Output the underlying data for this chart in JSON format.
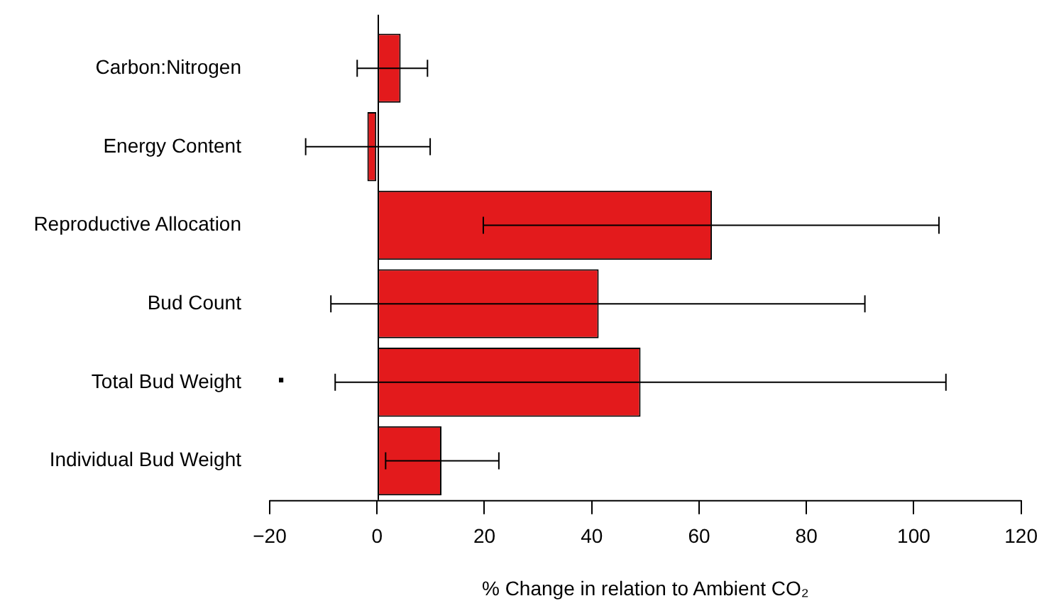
{
  "chart_data": {
    "type": "bar",
    "orientation": "horizontal",
    "xlabel": "% Change in relation to Ambient CO₂",
    "categories": [
      "Carbon:Nitrogen",
      "Energy Content",
      "Reproductive Allocation",
      "Bud Count",
      "Total Bud Weight",
      "Individual Bud Weight"
    ],
    "values": [
      4.4,
      -1.8,
      62.4,
      41.3,
      49.1,
      12.0
    ],
    "errors": [
      [
        -3.7,
        9.4
      ],
      [
        -13.3,
        9.9
      ],
      [
        19.8,
        104.7
      ],
      [
        -8.6,
        90.9
      ],
      [
        -7.8,
        106
      ],
      [
        1.6,
        22.7
      ]
    ],
    "color": "#e31a1c",
    "xlim": [
      -20,
      120
    ],
    "xticks": [
      -20,
      0,
      20,
      40,
      60,
      80,
      100,
      120
    ],
    "ref_lines": [
      {
        "axis": "x",
        "value": 0,
        "color": "#000000"
      }
    ],
    "annotations": [
      "."
    ],
    "grid": false,
    "legend": false
  }
}
